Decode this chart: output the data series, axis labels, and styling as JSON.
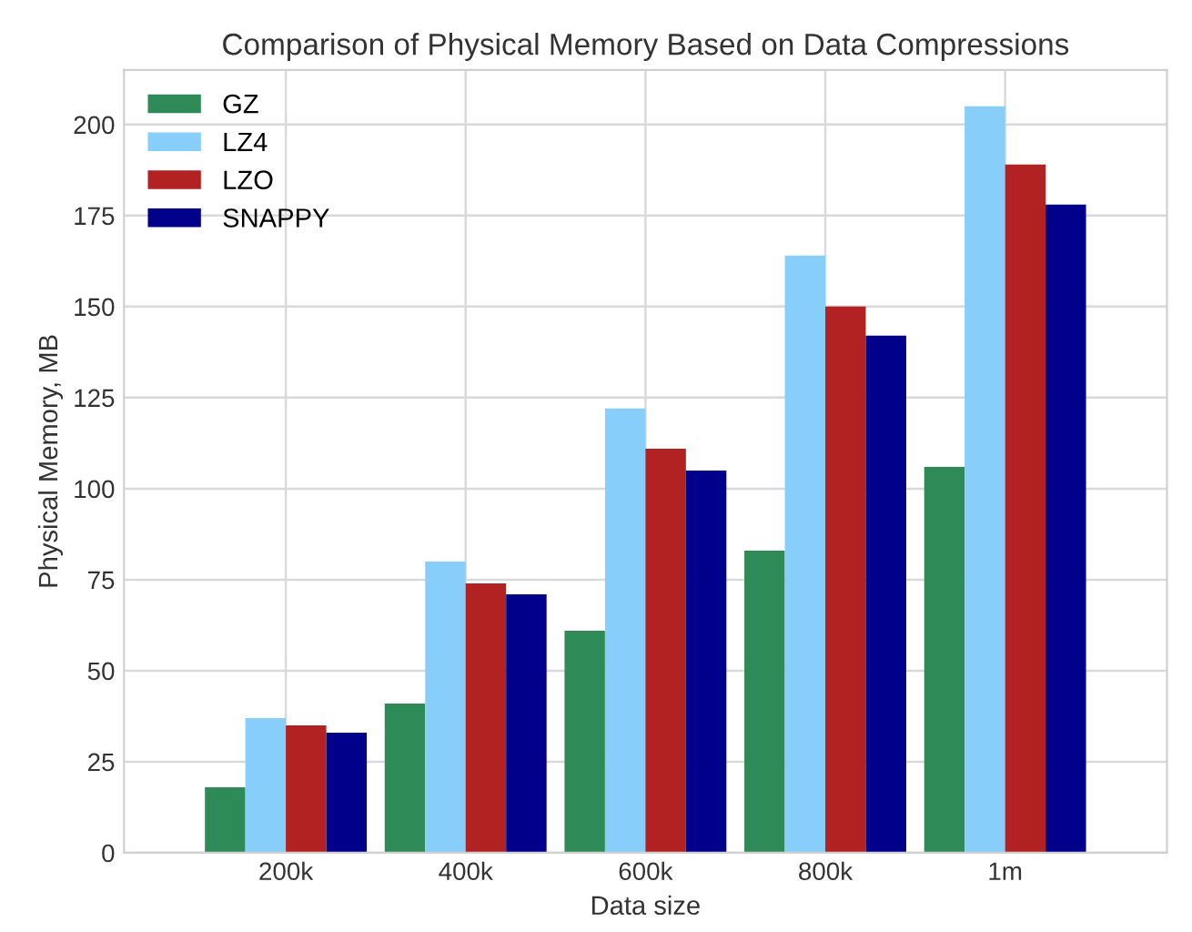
{
  "chart_data": {
    "type": "bar",
    "title": "Comparison of Physical Memory Based on Data Compressions",
    "xlabel": "Data size",
    "ylabel": "Physical Memory, MB",
    "categories": [
      "200k",
      "400k",
      "600k",
      "800k",
      "1m"
    ],
    "series": [
      {
        "name": "GZ",
        "color": "#2e8b57",
        "values": [
          18,
          41,
          61,
          83,
          106
        ]
      },
      {
        "name": "LZ4",
        "color": "#87cefa",
        "values": [
          37,
          80,
          122,
          164,
          205
        ]
      },
      {
        "name": "LZO",
        "color": "#b22222",
        "values": [
          35,
          74,
          111,
          150,
          189
        ]
      },
      {
        "name": "SNAPPY",
        "color": "#00008b",
        "values": [
          33,
          71,
          105,
          142,
          178
        ]
      }
    ],
    "ylim": [
      0,
      215
    ],
    "yticks": [
      0,
      25,
      50,
      75,
      100,
      125,
      150,
      175,
      200
    ],
    "grid": true,
    "legend": "top left"
  }
}
